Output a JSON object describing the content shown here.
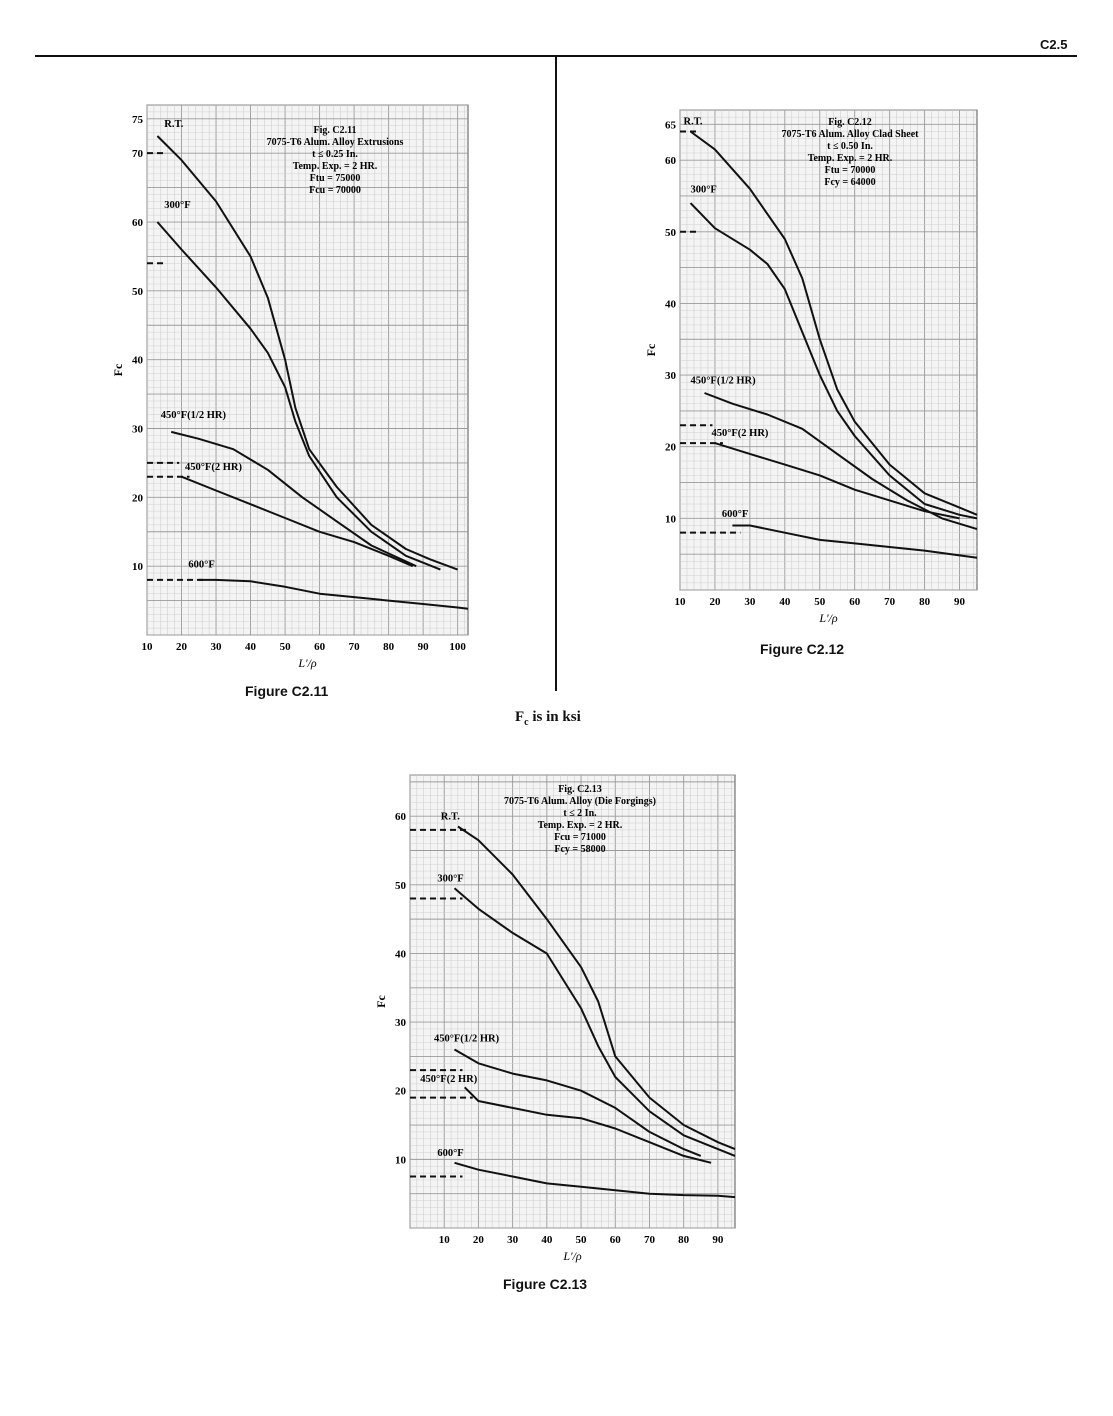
{
  "page": {
    "page_number": "C2.5",
    "units_note": {
      "main": "F",
      "sub": "c",
      "rest": " is in ksi"
    }
  },
  "chart_data": [
    {
      "id": "fig-c2-11",
      "type": "line",
      "caption": "Figure C2.11",
      "xlabel": "L'/ρ",
      "ylabel": "Fc",
      "xlim": [
        10,
        103
      ],
      "ylim": [
        0,
        77
      ],
      "xticks": [
        10,
        20,
        30,
        40,
        50,
        60,
        70,
        80,
        90,
        100
      ],
      "yticks": [
        10,
        20,
        30,
        40,
        50,
        60,
        70,
        75
      ],
      "grid": true,
      "annotation": [
        "Fig. C2.11",
        "7075-T6 Alum. Alloy Extrusions",
        "t ≤ 0.25 In.",
        "Temp. Exp. = 2 HR.",
        "Ftu = 75000",
        "Fcu = 70000"
      ],
      "series": [
        {
          "name": "R.T.",
          "x": [
            13,
            20,
            30,
            40,
            45,
            50,
            53,
            57,
            65,
            75,
            85,
            92,
            100
          ],
          "y": [
            72.5,
            69,
            63,
            55,
            49,
            40,
            33,
            27,
            21.5,
            16,
            12.5,
            11,
            9.5
          ],
          "cutoff": 70
        },
        {
          "name": "300°F",
          "x": [
            13,
            20,
            30,
            40,
            45,
            50,
            53,
            57,
            65,
            75,
            85,
            95
          ],
          "y": [
            60,
            56,
            50.5,
            44.5,
            41,
            36,
            31,
            26,
            20,
            15,
            11.5,
            9.5
          ],
          "cutoff": 54
        },
        {
          "name": "450°F(1/2 HR)",
          "x": [
            17,
            25,
            35,
            45,
            55,
            65,
            75,
            88
          ],
          "y": [
            29.5,
            28.5,
            27,
            24,
            20,
            16.5,
            13,
            10
          ],
          "cutoff": 25
        },
        {
          "name": "450°F(2 HR)",
          "x": [
            20,
            30,
            40,
            50,
            60,
            70,
            80,
            87
          ],
          "y": [
            23,
            21,
            19,
            17,
            15,
            13.5,
            11.5,
            10
          ],
          "cutoff": 23
        },
        {
          "name": "600°F",
          "x": [
            25,
            30,
            40,
            50,
            60,
            70,
            80,
            90,
            100,
            103
          ],
          "y": [
            8,
            8,
            7.8,
            7,
            6,
            5.5,
            5,
            4.5,
            4,
            3.8
          ],
          "cutoff": 8
        }
      ],
      "label_values": [
        {
          "text": "R.T.",
          "x": 15,
          "y": 73.8
        },
        {
          "text": "300°F",
          "x": 15,
          "y": 62
        },
        {
          "text": "450°F(1/2 HR)",
          "x": 14,
          "y": 31.5
        },
        {
          "text": "450°F(2 HR)",
          "x": 21,
          "y": 24
        },
        {
          "text": "600°F",
          "x": 22,
          "y": 9.8
        }
      ]
    },
    {
      "id": "fig-c2-12",
      "type": "line",
      "caption": "Figure C2.12",
      "xlabel": "L'/ρ",
      "ylabel": "Fc",
      "xlim": [
        10,
        95
      ],
      "ylim": [
        0,
        67
      ],
      "xticks": [
        10,
        20,
        30,
        40,
        50,
        60,
        70,
        80,
        90
      ],
      "yticks": [
        10,
        20,
        30,
        40,
        50,
        60,
        65
      ],
      "grid": true,
      "annotation": [
        "Fig. C2.12",
        "7075-T6 Alum. Alloy Clad Sheet",
        "t ≤ 0.50 In.",
        "Temp. Exp. = 2 HR.",
        "Ftu = 70000",
        "Fcy = 64000"
      ],
      "series": [
        {
          "name": "R.T.",
          "x": [
            13,
            20,
            30,
            40,
            45,
            50,
            55,
            60,
            70,
            80,
            90,
            95
          ],
          "y": [
            64,
            61.5,
            56,
            49,
            43.5,
            35,
            28,
            23.5,
            17.5,
            13.5,
            11.5,
            10.5
          ],
          "cutoff": 64
        },
        {
          "name": "300°F",
          "x": [
            13,
            20,
            30,
            35,
            40,
            45,
            50,
            55,
            60,
            70,
            80,
            90,
            95
          ],
          "y": [
            54,
            50.5,
            47.5,
            45.5,
            42,
            36,
            30,
            25,
            21.5,
            16,
            12,
            10.5,
            10
          ],
          "cutoff": 50
        },
        {
          "name": "450°F(1/2 HR)",
          "x": [
            17,
            25,
            35,
            45,
            55,
            65,
            75,
            85,
            95
          ],
          "y": [
            27.5,
            26,
            24.5,
            22.5,
            19,
            15.5,
            12.5,
            10,
            8.5
          ],
          "cutoff": 23
        },
        {
          "name": "450°F(2 HR)",
          "x": [
            20,
            30,
            40,
            50,
            60,
            70,
            80,
            90
          ],
          "y": [
            20.5,
            19,
            17.5,
            16,
            14,
            12.5,
            11,
            10
          ],
          "cutoff": 20.5
        },
        {
          "name": "600°F",
          "x": [
            25,
            30,
            40,
            50,
            60,
            70,
            80,
            95
          ],
          "y": [
            9,
            9,
            8,
            7,
            6.5,
            6,
            5.5,
            4.5
          ],
          "cutoff": 8
        }
      ],
      "label_values": [
        {
          "text": "R.T.",
          "x": 11,
          "y": 65
        },
        {
          "text": "300°F",
          "x": 13,
          "y": 55.5
        },
        {
          "text": "450°F(1/2 HR)",
          "x": 13,
          "y": 28.8
        },
        {
          "text": "450°F(2 HR)",
          "x": 19,
          "y": 21.5
        },
        {
          "text": "600°F",
          "x": 22,
          "y": 10.2
        }
      ]
    },
    {
      "id": "fig-c2-13",
      "type": "line",
      "caption": "Figure C2.13",
      "xlabel": "L'/ρ",
      "ylabel": "Fc",
      "xlim": [
        0,
        95
      ],
      "ylim": [
        0,
        66
      ],
      "xticks": [
        10,
        20,
        30,
        40,
        50,
        60,
        70,
        80,
        90
      ],
      "yticks": [
        10,
        20,
        30,
        40,
        50,
        60
      ],
      "grid": true,
      "annotation": [
        "Fig. C2.13",
        "7075-T6 Alum. Alloy (Die Forgings)",
        "t ≤ 2 In.",
        "Temp. Exp. = 2 HR.",
        "Fcu = 71000",
        "Fcy = 58000"
      ],
      "series": [
        {
          "name": "R.T.",
          "x": [
            14,
            20,
            30,
            40,
            50,
            55,
            60,
            70,
            80,
            90,
            95
          ],
          "y": [
            58.5,
            56.5,
            51.5,
            45,
            38,
            33,
            25,
            19,
            15,
            12.5,
            11.5
          ],
          "cutoff": 58
        },
        {
          "name": "300°F",
          "x": [
            13,
            20,
            30,
            40,
            45,
            50,
            55,
            60,
            70,
            80,
            90,
            95
          ],
          "y": [
            49.5,
            46.5,
            43,
            40,
            36,
            32,
            26.5,
            22,
            17,
            13.5,
            11.5,
            10.5
          ],
          "cutoff": 48
        },
        {
          "name": "450°F(1/2 HR)",
          "x": [
            13,
            20,
            30,
            40,
            50,
            60,
            70,
            80,
            85
          ],
          "y": [
            26,
            24,
            22.5,
            21.5,
            20,
            17.5,
            14,
            11.5,
            10.5
          ],
          "cutoff": 23
        },
        {
          "name": "450°F(2 HR)",
          "x": [
            16,
            20,
            30,
            40,
            50,
            60,
            70,
            80,
            88
          ],
          "y": [
            20.5,
            18.5,
            17.5,
            16.5,
            16,
            14.5,
            12.5,
            10.5,
            9.5
          ],
          "cutoff": 19
        },
        {
          "name": "600°F",
          "x": [
            13,
            20,
            30,
            40,
            50,
            60,
            70,
            80,
            90,
            95
          ],
          "y": [
            9.5,
            8.5,
            7.5,
            6.5,
            6,
            5.5,
            5,
            4.8,
            4.7,
            4.5
          ],
          "cutoff": 7.5
        }
      ],
      "label_values": [
        {
          "text": "R.T.",
          "x": 9,
          "y": 59.5
        },
        {
          "text": "300°F",
          "x": 8,
          "y": 50.5
        },
        {
          "text": "450°F(1/2 HR)",
          "x": 7,
          "y": 27.2
        },
        {
          "text": "450°F(2 HR)",
          "x": 3,
          "y": 21.3
        },
        {
          "text": "600°F",
          "x": 8,
          "y": 10.5
        }
      ]
    }
  ]
}
